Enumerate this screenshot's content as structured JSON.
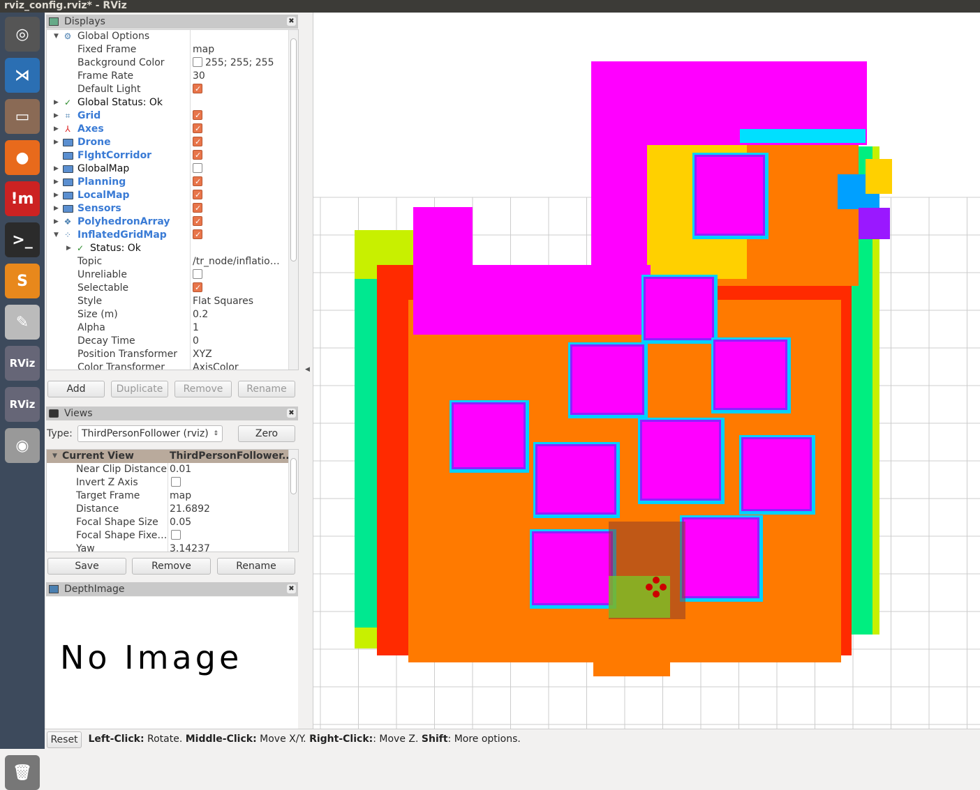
{
  "window": {
    "title": "rviz_config.rviz* - RViz"
  },
  "launcher": [
    {
      "name": "ubuntu-icon"
    },
    {
      "name": "vscode-icon"
    },
    {
      "name": "files-icon"
    },
    {
      "name": "firefox-icon"
    },
    {
      "name": "impress-icon"
    },
    {
      "name": "terminal-icon"
    },
    {
      "name": "sublime-icon"
    },
    {
      "name": "text-editor-icon"
    },
    {
      "name": "rviz-icon"
    },
    {
      "name": "rviz-icon-2"
    },
    {
      "name": "disk-icon"
    },
    {
      "name": "trash-icon"
    }
  ],
  "displays": {
    "title": "Displays",
    "rows": [
      {
        "label": "Global Options",
        "value": "",
        "indent": 1,
        "arrow": "▼",
        "icon": "⚙",
        "style": "",
        "check": null
      },
      {
        "label": "Fixed Frame",
        "value": "map",
        "indent": 2,
        "arrow": "",
        "icon": "",
        "style": "",
        "check": null
      },
      {
        "label": "Background Color",
        "value": "255; 255; 255",
        "indent": 2,
        "arrow": "",
        "icon": "",
        "style": "",
        "check": null,
        "swatch": "#ffffff"
      },
      {
        "label": "Frame Rate",
        "value": "30",
        "indent": 2,
        "arrow": "",
        "icon": "",
        "style": "",
        "check": null
      },
      {
        "label": "Default Light",
        "value": "",
        "indent": 2,
        "arrow": "",
        "icon": "",
        "style": "",
        "check": true
      },
      {
        "label": "Global Status: Ok",
        "value": "",
        "indent": 1,
        "arrow": "▶",
        "icon": "✓",
        "style": "dark",
        "check": null
      },
      {
        "label": "Grid",
        "value": "",
        "indent": 1,
        "arrow": "▶",
        "icon": "⌗",
        "style": "blue",
        "check": true
      },
      {
        "label": "Axes",
        "value": "",
        "indent": 1,
        "arrow": "▶",
        "icon": "⅄",
        "style": "blue",
        "check": true
      },
      {
        "label": "Drone",
        "value": "",
        "indent": 1,
        "arrow": "▶",
        "icon": "folder",
        "style": "blue",
        "check": true
      },
      {
        "label": "FlghtCorridor",
        "value": "",
        "indent": 1,
        "arrow": "",
        "icon": "folder",
        "style": "blue",
        "check": true
      },
      {
        "label": "GlobalMap",
        "value": "",
        "indent": 1,
        "arrow": "▶",
        "icon": "folder",
        "style": "dark",
        "check": false
      },
      {
        "label": "Planning",
        "value": "",
        "indent": 1,
        "arrow": "▶",
        "icon": "folder",
        "style": "blue",
        "check": true
      },
      {
        "label": "LocalMap",
        "value": "",
        "indent": 1,
        "arrow": "▶",
        "icon": "folder",
        "style": "blue",
        "check": true
      },
      {
        "label": "Sensors",
        "value": "",
        "indent": 1,
        "arrow": "▶",
        "icon": "folder",
        "style": "blue",
        "check": true
      },
      {
        "label": "PolyhedronArray",
        "value": "",
        "indent": 1,
        "arrow": "▶",
        "icon": "❖",
        "style": "blue",
        "check": true
      },
      {
        "label": "InflatedGridMap",
        "value": "",
        "indent": 1,
        "arrow": "▼",
        "icon": "⁘",
        "style": "blue",
        "check": true
      },
      {
        "label": "Status: Ok",
        "value": "",
        "indent": 2,
        "arrow": "▶",
        "icon": "✓",
        "style": "dark",
        "check": null
      },
      {
        "label": "Topic",
        "value": "/tr_node/inflatio…",
        "indent": 2,
        "arrow": "",
        "icon": "",
        "style": "",
        "check": null
      },
      {
        "label": "Unreliable",
        "value": "",
        "indent": 2,
        "arrow": "",
        "icon": "",
        "style": "",
        "check": false
      },
      {
        "label": "Selectable",
        "value": "",
        "indent": 2,
        "arrow": "",
        "icon": "",
        "style": "",
        "check": true
      },
      {
        "label": "Style",
        "value": "Flat Squares",
        "indent": 2,
        "arrow": "",
        "icon": "",
        "style": "",
        "check": null
      },
      {
        "label": "Size (m)",
        "value": "0.2",
        "indent": 2,
        "arrow": "",
        "icon": "",
        "style": "",
        "check": null
      },
      {
        "label": "Alpha",
        "value": "1",
        "indent": 2,
        "arrow": "",
        "icon": "",
        "style": "",
        "check": null
      },
      {
        "label": "Decay Time",
        "value": "0",
        "indent": 2,
        "arrow": "",
        "icon": "",
        "style": "",
        "check": null
      },
      {
        "label": "Position Transformer",
        "value": "XYZ",
        "indent": 2,
        "arrow": "",
        "icon": "",
        "style": "",
        "check": null
      },
      {
        "label": "Color Transformer",
        "value": "AxisColor",
        "indent": 2,
        "arrow": "",
        "icon": "",
        "style": "",
        "check": null
      }
    ],
    "buttons": {
      "add": "Add",
      "duplicate": "Duplicate",
      "remove": "Remove",
      "rename": "Rename"
    }
  },
  "views": {
    "title": "Views",
    "type_label": "Type:",
    "type_value": "ThirdPersonFollower (rviz)",
    "zero": "Zero",
    "header": {
      "label": "Current View",
      "value": "ThirdPersonFollower..."
    },
    "rows": [
      {
        "label": "Near Clip Distance",
        "value": "0.01",
        "check": null
      },
      {
        "label": "Invert Z Axis",
        "value": "",
        "check": false
      },
      {
        "label": "Target Frame",
        "value": "map",
        "check": null
      },
      {
        "label": "Distance",
        "value": "21.6892",
        "check": null
      },
      {
        "label": "Focal Shape Size",
        "value": "0.05",
        "check": null
      },
      {
        "label": "Focal Shape Fixe…",
        "value": "",
        "check": false
      },
      {
        "label": "Yaw",
        "value": "3.14237",
        "check": null
      }
    ],
    "buttons": {
      "save": "Save",
      "remove": "Remove",
      "rename": "Rename"
    }
  },
  "depth": {
    "title": "DepthImage",
    "no_image": "No Image"
  },
  "status": {
    "reset": "Reset",
    "k1": "Left-Click:",
    "v1": " Rotate. ",
    "k2": "Middle-Click:",
    "v2": " Move X/Y. ",
    "k3": "Right-Click:",
    "v3": ": Move Z. ",
    "k4": "Shift",
    "v4": ": More options."
  },
  "colors": {
    "accent_check": "#e8754a",
    "tree_blue": "#3a7bd5",
    "map_orange": "#ff7f00",
    "map_magenta": "#ff00ff"
  }
}
